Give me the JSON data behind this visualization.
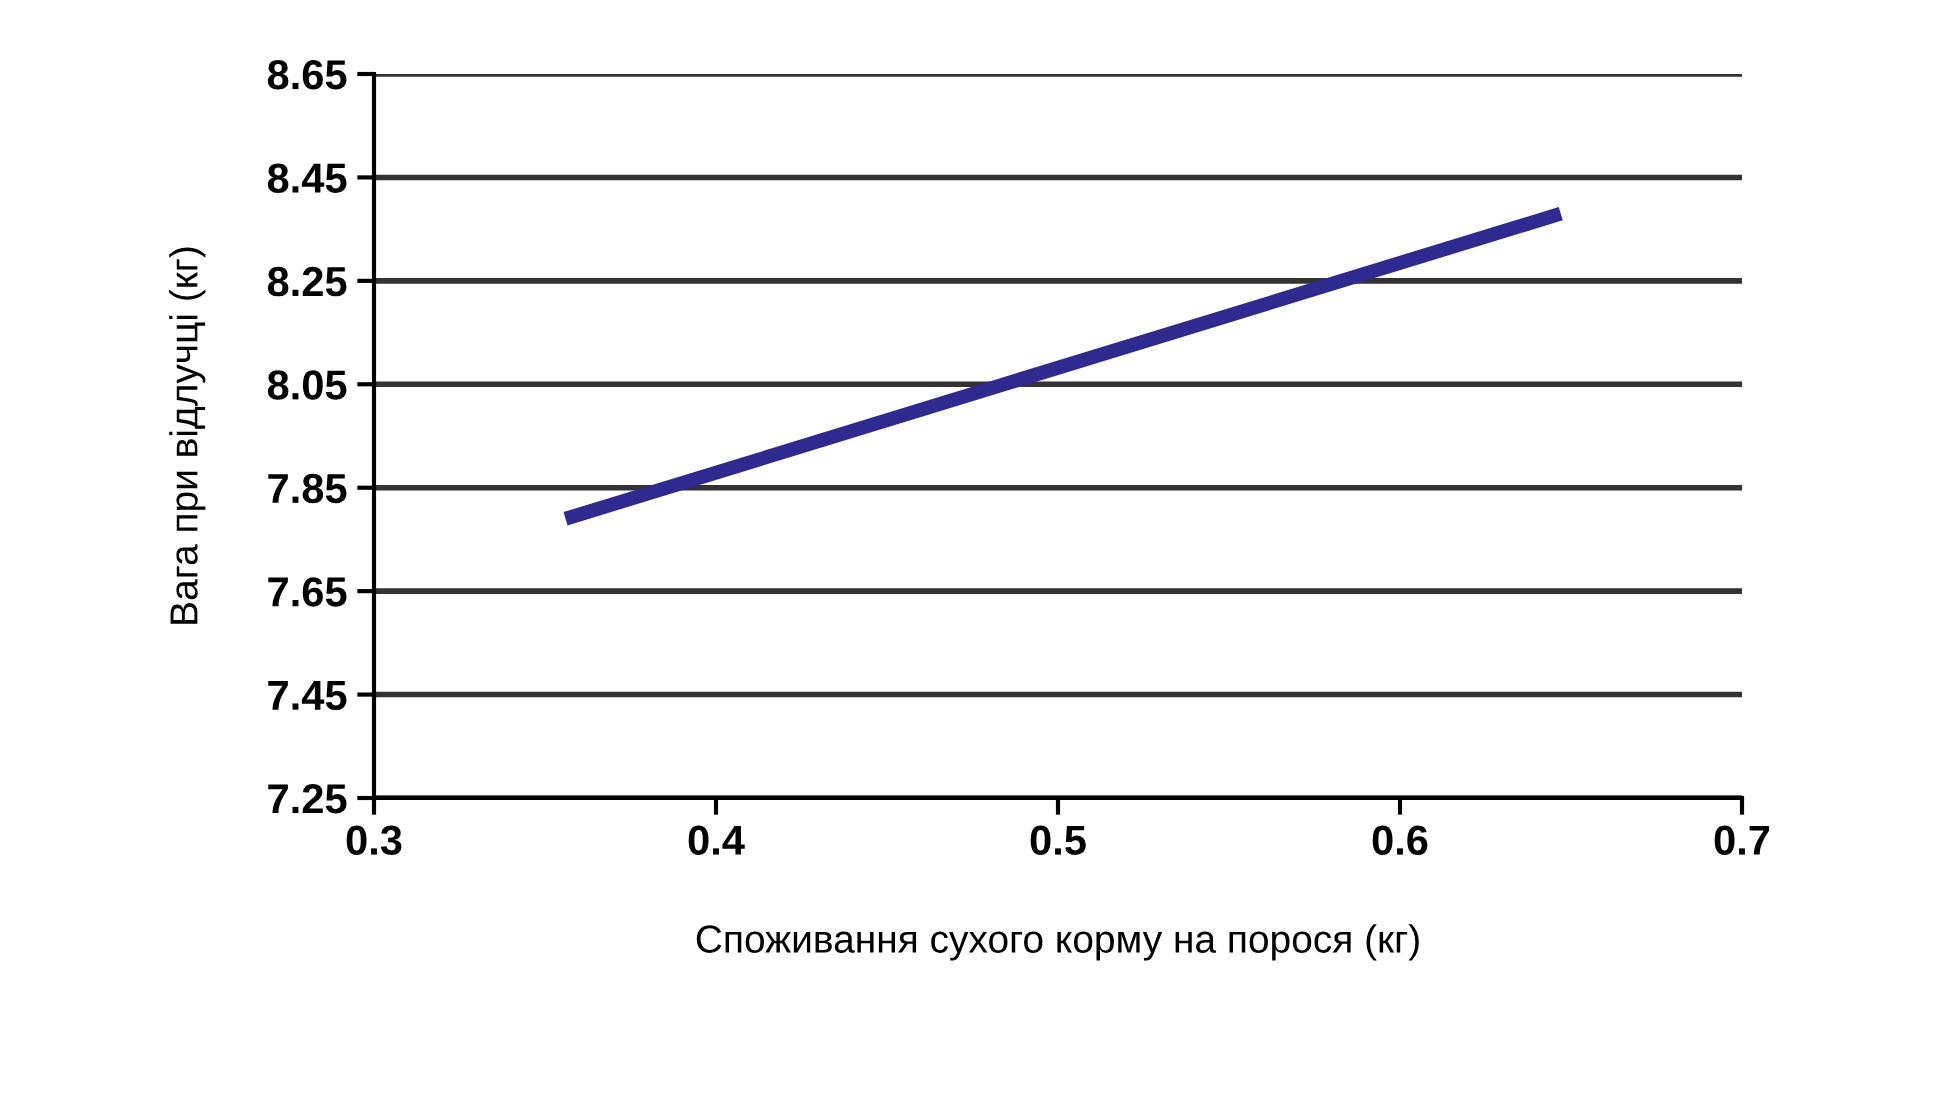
{
  "chart_data": {
    "type": "line",
    "xlabel": "Споживання сухого корму на порося (кг)",
    "ylabel": "Вага при відлучці (кг)",
    "series": [
      {
        "color": "#2e2a8f",
        "x": [
          0.356,
          0.647
        ],
        "values": [
          7.79,
          8.38
        ]
      }
    ],
    "xlim": [
      0.3,
      0.7
    ],
    "xticks": [
      0.3,
      0.4,
      0.5,
      0.6,
      0.7
    ],
    "ylim": [
      7.25,
      8.65
    ],
    "yticks": [
      7.25,
      7.45,
      7.65,
      7.85,
      8.05,
      8.25,
      8.45,
      8.65
    ],
    "grid": "y",
    "marker": "none",
    "line_style": "solid"
  }
}
